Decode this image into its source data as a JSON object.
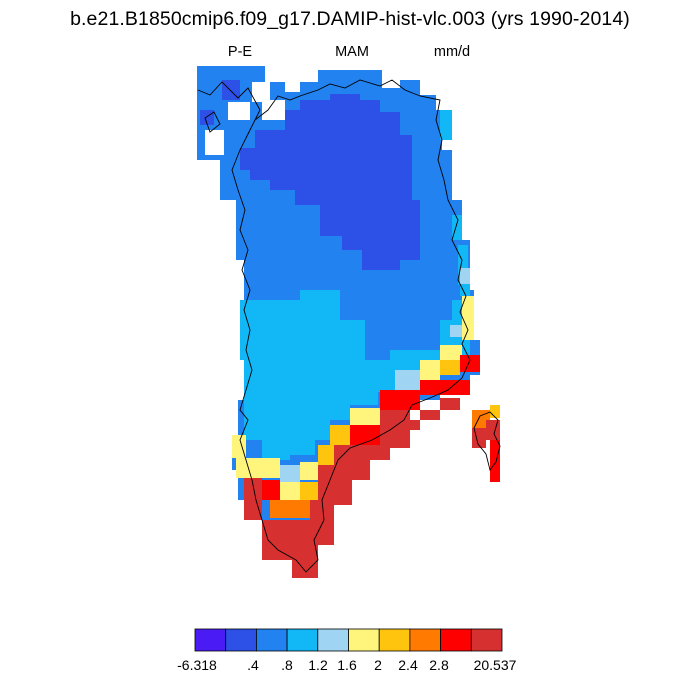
{
  "title": "b.e21.B1850cmip6.f09_g17.DAMIP-hist-vlc.003 (yrs 1990-2014)",
  "subtitle": {
    "variable": "P-E",
    "season": "MAM",
    "units": "mm/d"
  },
  "colorbar": {
    "colors": [
      "#4b1bf6",
      "#2d50e6",
      "#2282f0",
      "#12b7f6",
      "#9fd4f2",
      "#fff47c",
      "#fec40e",
      "#ff7a00",
      "#ff0000",
      "#d73030"
    ],
    "labels": [
      "-6.318",
      ".4",
      ".8",
      "1.2",
      "1.6",
      "2",
      "2.4",
      "2.8",
      "20.537"
    ]
  },
  "map": {
    "region": "Greenland",
    "cell_value_bins": {
      "b1": "#2d50e6",
      "b2": "#2282f0",
      "b3": "#12b7f6",
      "b4": "#9fd4f2",
      "b5": "#fff47c",
      "b6": "#fec40e",
      "b7": "#ff7a00",
      "b8": "#ff0000",
      "b9": "#d73030"
    }
  }
}
